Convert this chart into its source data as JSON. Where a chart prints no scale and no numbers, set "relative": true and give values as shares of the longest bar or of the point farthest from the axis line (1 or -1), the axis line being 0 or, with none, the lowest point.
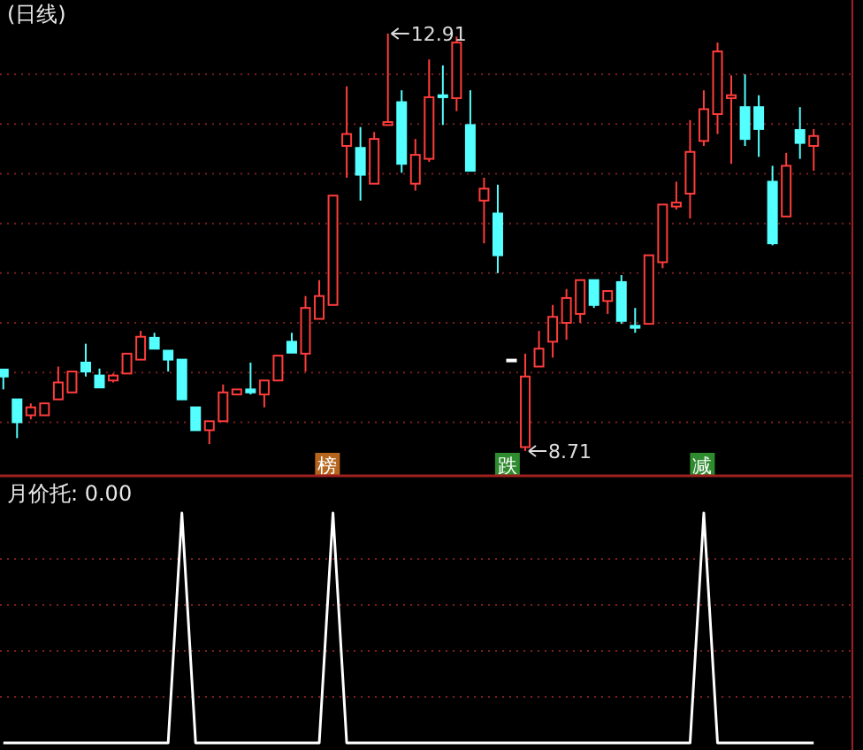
{
  "chart_data": [
    {
      "type": "candlestick",
      "title": "(日线)",
      "categories": [
        null,
        null,
        null,
        null,
        null,
        null,
        null,
        null,
        null,
        null,
        null,
        null,
        null,
        null,
        null,
        null,
        null,
        null,
        null,
        null,
        null,
        null,
        null,
        null,
        null,
        null,
        null,
        null,
        null,
        null,
        null,
        null,
        null,
        null,
        null,
        null,
        null,
        null,
        null,
        null,
        null,
        null,
        null,
        null,
        null,
        null,
        null,
        null,
        null,
        null,
        null,
        null,
        null,
        null,
        null,
        null,
        null,
        null,
        null,
        null
      ],
      "ohlc": [
        [
          9.53,
          9.53,
          9.33,
          9.46
        ],
        [
          9.23,
          9.23,
          8.84,
          9.0
        ],
        [
          9.07,
          9.19,
          9.03,
          9.15
        ],
        [
          9.07,
          9.19,
          9.07,
          9.19
        ],
        [
          9.23,
          9.56,
          9.23,
          9.4
        ],
        [
          9.3,
          9.51,
          9.3,
          9.51
        ],
        [
          9.6,
          9.79,
          9.46,
          9.51
        ],
        [
          9.47,
          9.54,
          9.35,
          9.35
        ],
        [
          9.42,
          9.49,
          9.4,
          9.47
        ],
        [
          9.49,
          9.69,
          9.49,
          9.69
        ],
        [
          9.63,
          9.92,
          9.63,
          9.86
        ],
        [
          9.85,
          9.9,
          9.74,
          9.74
        ],
        [
          9.72,
          9.72,
          9.51,
          9.63
        ],
        [
          9.63,
          9.63,
          9.23,
          9.23
        ],
        [
          9.15,
          9.15,
          8.92,
          8.92
        ],
        [
          8.92,
          9.01,
          8.78,
          9.01
        ],
        [
          9.01,
          9.38,
          9.01,
          9.3
        ],
        [
          9.28,
          9.33,
          9.28,
          9.33
        ],
        [
          9.33,
          9.6,
          9.28,
          9.3
        ],
        [
          9.28,
          9.42,
          9.15,
          9.42
        ],
        [
          9.42,
          9.67,
          9.42,
          9.67
        ],
        [
          9.81,
          9.9,
          9.7,
          9.7
        ],
        [
          9.69,
          10.27,
          9.51,
          10.15
        ],
        [
          10.04,
          10.43,
          10.04,
          10.27
        ],
        [
          10.18,
          11.28,
          10.18,
          11.28
        ],
        [
          11.78,
          12.38,
          11.46,
          11.9
        ],
        [
          11.76,
          11.97,
          11.23,
          11.49
        ],
        [
          11.4,
          11.92,
          11.4,
          11.85
        ],
        [
          11.99,
          12.91,
          11.99,
          12.02
        ],
        [
          12.22,
          12.34,
          11.51,
          11.6
        ],
        [
          11.4,
          11.85,
          11.33,
          11.69
        ],
        [
          11.65,
          12.65,
          11.62,
          12.27
        ],
        [
          12.29,
          12.59,
          11.99,
          12.27
        ],
        [
          12.26,
          12.88,
          12.13,
          12.82
        ],
        [
          11.99,
          12.34,
          11.53,
          11.53
        ],
        [
          11.23,
          11.46,
          10.8,
          11.35
        ],
        [
          11.1,
          11.39,
          10.5,
          10.68
        ],
        [
          9.63,
          9.63,
          9.63,
          9.63
        ],
        [
          8.75,
          9.69,
          8.71,
          9.46
        ],
        [
          9.56,
          9.92,
          9.56,
          9.74
        ],
        [
          9.81,
          10.18,
          9.65,
          10.06
        ],
        [
          10.0,
          10.34,
          9.83,
          10.25
        ],
        [
          10.09,
          10.43,
          10.0,
          10.43
        ],
        [
          10.43,
          10.43,
          10.15,
          10.18
        ],
        [
          10.22,
          10.32,
          10.09,
          10.32
        ],
        [
          10.41,
          10.48,
          9.99,
          10.02
        ],
        [
          9.97,
          10.15,
          9.9,
          9.95
        ],
        [
          9.99,
          10.68,
          9.99,
          10.68
        ],
        [
          10.61,
          11.19,
          10.55,
          11.19
        ],
        [
          11.17,
          11.42,
          11.14,
          11.21
        ],
        [
          11.3,
          12.04,
          11.05,
          11.72
        ],
        [
          11.83,
          12.34,
          11.78,
          12.15
        ],
        [
          12.1,
          12.82,
          11.9,
          12.73
        ],
        [
          12.26,
          12.49,
          11.6,
          12.29
        ],
        [
          12.17,
          12.5,
          11.78,
          11.85
        ],
        [
          12.17,
          12.29,
          11.67,
          11.95
        ],
        [
          11.42,
          11.58,
          10.78,
          10.8
        ],
        [
          11.07,
          11.71,
          11.07,
          11.58
        ],
        [
          11.94,
          12.17,
          11.65,
          11.81
        ],
        [
          11.78,
          11.95,
          11.53,
          11.88
        ]
      ],
      "colors": [
        "#54ffff",
        "#54ffff",
        "#ff3c3c",
        "#ff3c3c",
        "#ff3c3c",
        "#ff3c3c",
        "#54ffff",
        "#54ffff",
        "#ff3c3c",
        "#ff3c3c",
        "#ff3c3c",
        "#54ffff",
        "#54ffff",
        "#54ffff",
        "#54ffff",
        "#ff3c3c",
        "#ff3c3c",
        "#ff3c3c",
        "#54ffff",
        "#ff3c3c",
        "#ff3c3c",
        "#54ffff",
        "#ff3c3c",
        "#ff3c3c",
        "#ff3c3c",
        "#ff3c3c",
        "#54ffff",
        "#ff3c3c",
        "#ff3c3c",
        "#54ffff",
        "#ff3c3c",
        "#ff3c3c",
        "#54ffff",
        "#ff3c3c",
        "#54ffff",
        "#ff3c3c",
        "#54ffff",
        "#ffffff",
        "#ff3c3c",
        "#ff3c3c",
        "#ff3c3c",
        "#ff3c3c",
        "#ff3c3c",
        "#54ffff",
        "#ff3c3c",
        "#54ffff",
        "#54ffff",
        "#ff3c3c",
        "#ff3c3c",
        "#ff3c3c",
        "#ff3c3c",
        "#ff3c3c",
        "#ff3c3c",
        "#ff3c3c",
        "#54ffff",
        "#54ffff",
        "#54ffff",
        "#ff3c3c",
        "#54ffff",
        "#ff3c3c"
      ],
      "annotations": [
        "12.91",
        "8.71",
        "榜",
        "跌",
        "减"
      ],
      "grid": "y",
      "yticks": [
        {
          "value": 9.0,
          "label": null
        },
        {
          "value": 9.5,
          "label": null
        },
        {
          "value": 10.0,
          "label": null
        },
        {
          "value": 10.5,
          "label": null
        },
        {
          "value": 11.0,
          "label": null
        },
        {
          "value": 11.5,
          "label": null
        },
        {
          "value": 12.0,
          "label": null
        },
        {
          "value": 12.5,
          "label": null
        }
      ]
    },
    {
      "type": "line",
      "title": "月价托: 0.00",
      "relative": true,
      "ref_lines": [
        {
          "axis": "y",
          "value": 0.2,
          "color": "#7a1e1e",
          "line_style": "dotted"
        },
        {
          "axis": "y",
          "value": 0.4,
          "color": "#7a1e1e",
          "line_style": "dotted"
        },
        {
          "axis": "y",
          "value": 0.6,
          "color": "#7a1e1e",
          "line_style": "dotted"
        },
        {
          "axis": "y",
          "value": 0.8,
          "color": "#7a1e1e",
          "line_style": "dotted"
        }
      ],
      "categories": [
        null,
        null,
        null,
        null,
        null,
        null,
        null,
        null,
        null,
        null,
        null,
        null,
        null,
        null,
        null,
        null,
        null,
        null,
        null,
        null,
        null,
        null,
        null,
        null,
        null,
        null,
        null,
        null,
        null,
        null,
        null,
        null,
        null,
        null,
        null,
        null,
        null,
        null,
        null,
        null,
        null,
        null,
        null,
        null,
        null,
        null,
        null,
        null,
        null,
        null,
        null,
        null,
        null,
        null,
        null,
        null,
        null,
        null,
        null,
        null
      ],
      "series": [
        {
          "color": "#ffffff",
          "values": [
            0,
            0,
            0,
            0,
            0,
            0,
            0,
            0,
            0,
            0,
            0,
            0,
            0,
            1,
            0,
            0,
            0,
            0,
            0,
            0,
            0,
            0,
            0,
            0,
            1,
            0,
            0,
            0,
            0,
            0,
            0,
            0,
            0,
            0,
            0,
            0,
            0,
            0,
            0,
            0,
            0,
            0,
            0,
            0,
            0,
            0,
            0,
            0,
            0,
            0,
            0,
            1,
            0,
            0,
            0,
            0,
            0,
            0,
            0,
            0
          ]
        }
      ]
    }
  ]
}
